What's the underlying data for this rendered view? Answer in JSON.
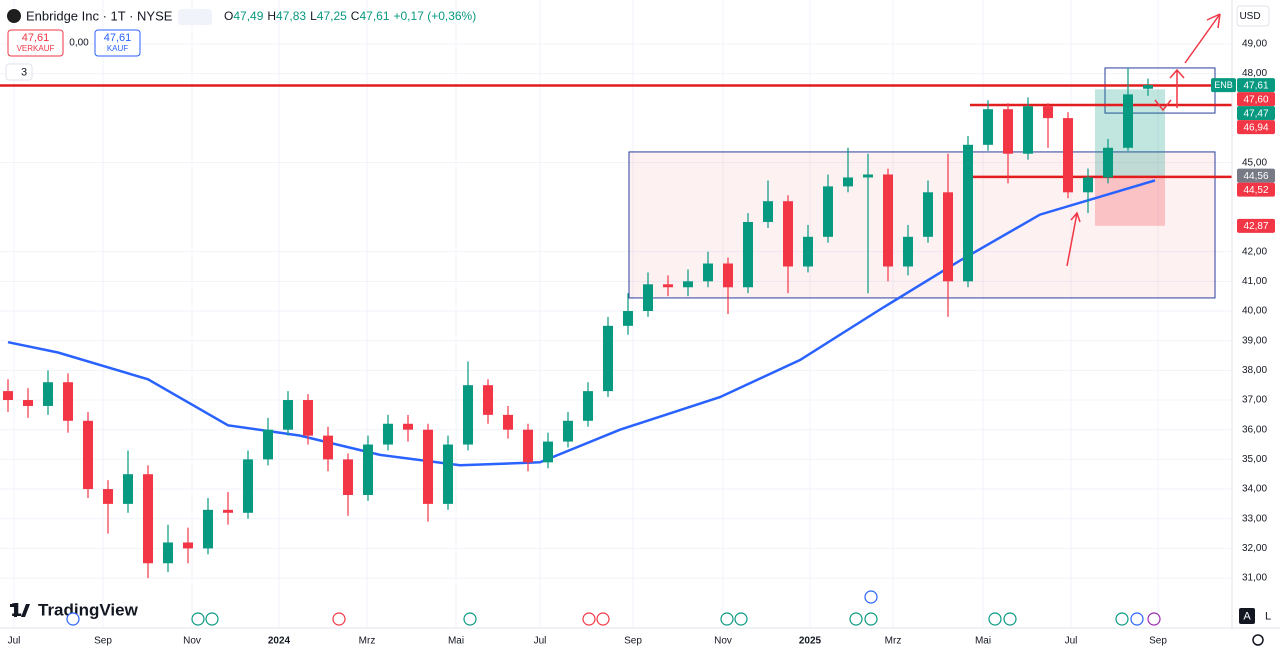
{
  "header": {
    "symbol": "Enbridge Inc · 1T · NYSE",
    "ohlc": [
      [
        "O",
        "47,49"
      ],
      [
        "H",
        "47,83"
      ],
      [
        "L",
        "47,25"
      ],
      [
        "C",
        "47,61"
      ]
    ],
    "change": "+0,17 (+0,36%)",
    "sell_price": "47,61",
    "sell_label": "VERKAUF",
    "spread": "0,00",
    "buy_price": "47,61",
    "buy_label": "KAUF",
    "indicator_count": "3",
    "currency": "USD",
    "brand": "TradingView",
    "auto": "A",
    "log": "L"
  },
  "chart_data": {
    "type": "candlestick",
    "symbol_label": "ENB",
    "open": [
      37.3,
      37.0,
      36.8,
      37.6,
      36.3,
      34.0,
      33.5,
      34.5,
      31.5,
      32.2,
      32.0,
      33.3,
      33.2,
      35.0,
      36.0,
      37.0,
      35.8,
      35.0,
      33.8,
      35.5,
      36.2,
      36.0,
      33.5,
      35.5,
      37.5,
      36.5,
      36.0,
      34.9,
      35.6,
      36.3,
      37.3,
      39.5,
      40.0,
      40.9,
      40.8,
      41.0,
      41.6,
      40.8,
      43.0,
      43.7,
      41.5,
      42.5,
      44.2,
      44.5,
      44.6,
      41.5,
      42.5,
      44.0,
      41.0,
      45.6,
      46.8,
      45.3,
      46.9,
      46.5,
      44.0,
      44.5,
      45.5,
      47.49
    ],
    "high": [
      37.7,
      37.4,
      38.0,
      37.9,
      36.6,
      34.3,
      35.3,
      34.8,
      32.8,
      32.7,
      33.7,
      33.9,
      35.3,
      36.4,
      37.3,
      37.2,
      36.1,
      35.2,
      35.8,
      36.5,
      36.5,
      36.2,
      35.8,
      38.3,
      37.7,
      36.8,
      36.2,
      35.9,
      36.6,
      37.6,
      39.8,
      40.6,
      41.3,
      41.2,
      41.4,
      42.0,
      41.8,
      43.3,
      44.4,
      43.9,
      42.9,
      44.6,
      45.5,
      45.3,
      44.8,
      42.9,
      44.4,
      45.3,
      45.9,
      47.1,
      47.0,
      47.2,
      47.0,
      46.7,
      44.8,
      45.8,
      48.2,
      47.83
    ],
    "low": [
      36.6,
      36.4,
      36.5,
      35.9,
      33.7,
      32.5,
      33.2,
      31.0,
      31.2,
      31.5,
      31.8,
      32.8,
      33.0,
      34.8,
      35.8,
      35.5,
      34.6,
      33.1,
      33.6,
      35.3,
      35.6,
      32.9,
      33.3,
      35.3,
      36.2,
      35.7,
      34.6,
      34.7,
      35.4,
      36.1,
      37.1,
      39.2,
      39.8,
      40.5,
      40.5,
      40.8,
      39.9,
      40.6,
      42.8,
      40.6,
      41.3,
      42.3,
      44.0,
      40.6,
      41.0,
      41.2,
      42.3,
      39.8,
      40.8,
      45.4,
      44.3,
      45.1,
      45.5,
      43.8,
      43.3,
      44.3,
      45.4,
      47.25
    ],
    "close": [
      37.0,
      36.8,
      37.6,
      36.3,
      34.0,
      33.5,
      34.5,
      31.5,
      32.2,
      32.0,
      33.3,
      33.2,
      35.0,
      36.0,
      37.0,
      35.8,
      35.0,
      33.8,
      35.5,
      36.2,
      36.0,
      33.5,
      35.5,
      37.5,
      36.5,
      36.0,
      34.9,
      35.6,
      36.3,
      37.3,
      39.5,
      40.0,
      40.9,
      40.8,
      41.0,
      41.6,
      40.8,
      43.0,
      43.7,
      41.5,
      42.5,
      44.2,
      44.5,
      44.6,
      41.5,
      42.5,
      44.0,
      41.0,
      45.6,
      46.8,
      45.3,
      46.9,
      46.5,
      44.0,
      44.5,
      45.5,
      47.3,
      47.61
    ],
    "up_color": "#089981",
    "down_color": "#f23645",
    "moving_average": {
      "color": "#2962ff",
      "x": [
        0,
        2.5,
        7,
        11,
        14.6,
        18.6,
        22.6,
        26.6,
        30.6,
        35.6,
        39.6,
        43.6,
        47.6,
        51.6,
        57.35
      ],
      "values": [
        38.95,
        38.6,
        37.7,
        36.15,
        35.8,
        35.15,
        34.8,
        34.9,
        36.0,
        37.1,
        38.35,
        40.05,
        41.7,
        43.25,
        44.4
      ]
    },
    "xticks": [
      {
        "value": 0.3,
        "label": "Jul"
      },
      {
        "value": 4.75,
        "label": "Sep"
      },
      {
        "value": 9.2,
        "label": "Nov"
      },
      {
        "value": 13.55,
        "label": "2024"
      },
      {
        "value": 17.95,
        "label": "Mrz"
      },
      {
        "value": 22.4,
        "label": "Mai"
      },
      {
        "value": 26.6,
        "label": "Jul"
      },
      {
        "value": 31.25,
        "label": "Sep"
      },
      {
        "value": 35.75,
        "label": "Nov"
      },
      {
        "value": 40.1,
        "label": "2025"
      },
      {
        "value": 44.25,
        "label": "Mrz"
      },
      {
        "value": 48.75,
        "label": "Mai"
      },
      {
        "value": 53.15,
        "label": "Jul"
      },
      {
        "value": 57.5,
        "label": "Sep"
      }
    ],
    "ylim": [
      29.52,
      50.48
    ],
    "yticks": [
      {
        "value": 49,
        "label": "49,00"
      },
      {
        "value": 48,
        "label": "48,00"
      },
      {
        "value": 45,
        "label": "45,00"
      },
      {
        "value": 42,
        "label": "42,00"
      },
      {
        "value": 41,
        "label": "41,00"
      },
      {
        "value": 40,
        "label": "40,00"
      },
      {
        "value": 39,
        "label": "39,00"
      },
      {
        "value": 38,
        "label": "38,00"
      },
      {
        "value": 37,
        "label": "37,00"
      },
      {
        "value": 36,
        "label": "36,00"
      },
      {
        "value": 35,
        "label": "35,00"
      },
      {
        "value": 34,
        "label": "34,00"
      },
      {
        "value": 33,
        "label": "33,00"
      },
      {
        "value": 32,
        "label": "32,00"
      },
      {
        "value": 31,
        "label": "31,00"
      }
    ],
    "price_labels": [
      {
        "value": 47.61,
        "label": "47,61",
        "color": "#089981"
      },
      {
        "value": 47.6,
        "label": "47,60",
        "color": "#f23645"
      },
      {
        "value": 47.47,
        "label": "47,47",
        "color": "#089981"
      },
      {
        "value": 46.94,
        "label": "46,94",
        "color": "#f23645"
      },
      {
        "value": 44.56,
        "label": "44,56",
        "color": "#787b86"
      },
      {
        "value": 44.52,
        "label": "44,52",
        "color": "#f23645"
      },
      {
        "value": 42.87,
        "label": "42,87",
        "color": "#f23645"
      }
    ],
    "rectangles": [
      [
        45.36,
        40.44
      ],
      [
        48.19,
        46.67
      ]
    ]
  }
}
